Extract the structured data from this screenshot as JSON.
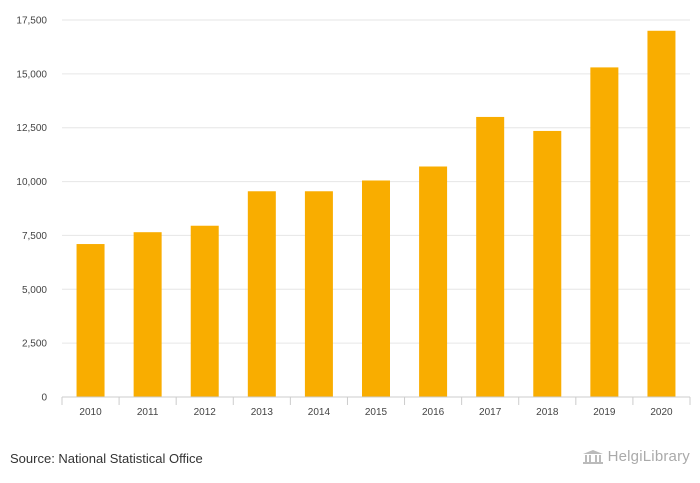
{
  "chart_data": {
    "type": "bar",
    "categories": [
      "2010",
      "2011",
      "2012",
      "2013",
      "2014",
      "2015",
      "2016",
      "2017",
      "2018",
      "2019",
      "2020"
    ],
    "values": [
      7100,
      7650,
      7950,
      9550,
      9550,
      10050,
      10700,
      13000,
      12350,
      15300,
      17000
    ],
    "y_ticks": [
      0,
      2500,
      5000,
      7500,
      10000,
      12500,
      15000,
      17500
    ],
    "y_tick_labels": [
      "0",
      "2,500",
      "5,000",
      "7,500",
      "10,000",
      "12,500",
      "15,000",
      "17,500"
    ],
    "ylim": [
      0,
      17500
    ],
    "title": "",
    "xlabel": "",
    "ylabel": "",
    "grid": true,
    "legend": "none"
  },
  "colors": {
    "bar": "#f9ad00",
    "grid": "#e6e6e6",
    "axis": "#cccccc"
  },
  "footer": {
    "source": "Source: National Statistical Office",
    "brand": "HelgiLibrary",
    "brand_icon": "library-building-icon"
  }
}
